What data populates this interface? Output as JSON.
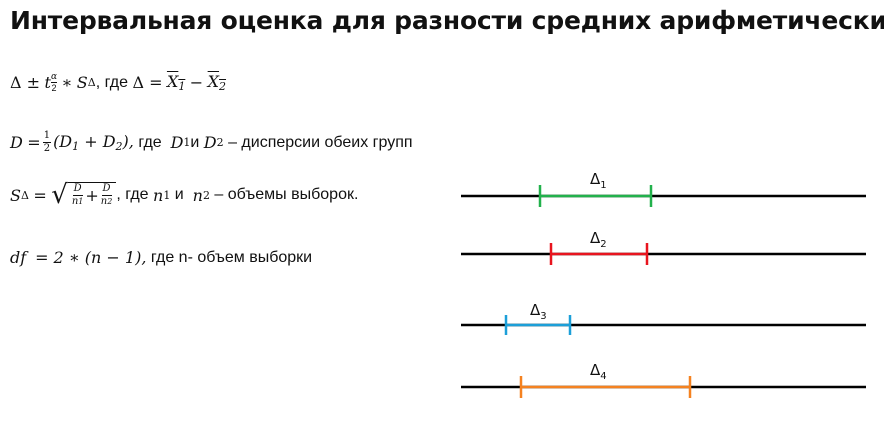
{
  "title": "Интервальная оценка для разности средних арифметических",
  "f1": {
    "delta": "Δ ±",
    "t": "t",
    "alpha": "α",
    "two": "2",
    "star": "∗",
    "s": "S",
    "sdelta": "Δ",
    "comma": ",",
    "gde": "где",
    "eq": "Δ =",
    "x1": "X",
    "x1s": "1",
    "minus": "−",
    "x2": "X",
    "x2s": "2"
  },
  "f2": {
    "d": "D",
    "eq": "=",
    "half_n": "1",
    "half_d": "2",
    "body1": "(D",
    "s1": "1",
    "plus": " + D",
    "s2": "2",
    "body2": "),",
    "gde": "где",
    "d1": "D",
    "d1s": "1",
    "i": "и",
    "d2": "D",
    "d2s": "2",
    "text": "– дисперсии обеих групп"
  },
  "f3": {
    "s": "S",
    "sdelta": "Δ",
    "eq": "=",
    "fn": "D",
    "fd1": "n",
    "fd1s": "1",
    "plus": "+",
    "fn2": "D",
    "fd2": "n",
    "fd2s": "2",
    "comma": ",",
    "gde": "где",
    "n1": "n",
    "n1s": "1",
    "i": "и",
    "n2": "n",
    "n2s": "2",
    "text": "– объемы выборок."
  },
  "f4": {
    "df": "df",
    "eq": "=  2 ∗ (n − 1),",
    "text": "где n- объем выборки"
  },
  "intervals": [
    {
      "label": "Δ",
      "sub": "1",
      "color": "#22b14c"
    },
    {
      "label": "Δ",
      "sub": "2",
      "color": "#e8141e"
    },
    {
      "label": "Δ",
      "sub": "3",
      "color": "#1c9fd8"
    },
    {
      "label": "Δ",
      "sub": "4",
      "color": "#f58220"
    }
  ]
}
